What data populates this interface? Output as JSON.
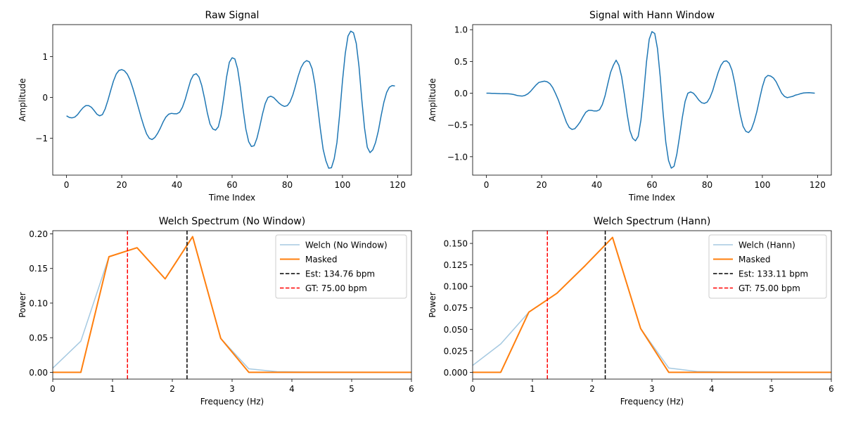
{
  "chart_data": [
    {
      "type": "line",
      "title": "Raw Signal",
      "xlabel": "Time Index",
      "ylabel": "Amplitude",
      "xlim": [
        -5,
        125
      ],
      "ylim": [
        -1.9,
        1.78
      ],
      "xticks": [
        0,
        20,
        40,
        60,
        80,
        100,
        120
      ],
      "xtick_labels": [
        "0",
        "20",
        "40",
        "60",
        "80",
        "100",
        "120"
      ],
      "yticks": [
        -1,
        0,
        1
      ],
      "ytick_labels": [
        "−1",
        "0",
        "1"
      ],
      "legend": null,
      "series": [
        {
          "color": "#1f77b4",
          "x": [
            0,
            1,
            2,
            3,
            4,
            5,
            6,
            7,
            8,
            9,
            10,
            11,
            12,
            13,
            14,
            15,
            16,
            17,
            18,
            19,
            20,
            21,
            22,
            23,
            24,
            25,
            26,
            27,
            28,
            29,
            30,
            31,
            32,
            33,
            34,
            35,
            36,
            37,
            38,
            39,
            40,
            41,
            42,
            43,
            44,
            45,
            46,
            47,
            48,
            49,
            50,
            51,
            52,
            53,
            54,
            55,
            56,
            57,
            58,
            59,
            60,
            61,
            62,
            63,
            64,
            65,
            66,
            67,
            68,
            69,
            70,
            71,
            72,
            73,
            74,
            75,
            76,
            77,
            78,
            79,
            80,
            81,
            82,
            83,
            84,
            85,
            86,
            87,
            88,
            89,
            90,
            91,
            92,
            93,
            94,
            95,
            96,
            97,
            98,
            99,
            100,
            101,
            102,
            103,
            104,
            105,
            106,
            107,
            108,
            109,
            110,
            111,
            112,
            113,
            114,
            115,
            116,
            117,
            118,
            119
          ],
          "values": [
            -0.45,
            -0.49,
            -0.5,
            -0.48,
            -0.42,
            -0.33,
            -0.25,
            -0.2,
            -0.2,
            -0.24,
            -0.32,
            -0.41,
            -0.45,
            -0.42,
            -0.28,
            -0.07,
            0.17,
            0.4,
            0.57,
            0.66,
            0.68,
            0.65,
            0.57,
            0.43,
            0.23,
            0.0,
            -0.24,
            -0.48,
            -0.7,
            -0.89,
            -1.0,
            -1.03,
            -0.98,
            -0.88,
            -0.75,
            -0.6,
            -0.48,
            -0.41,
            -0.39,
            -0.4,
            -0.4,
            -0.36,
            -0.24,
            -0.05,
            0.19,
            0.42,
            0.55,
            0.58,
            0.5,
            0.29,
            -0.02,
            -0.37,
            -0.65,
            -0.77,
            -0.8,
            -0.72,
            -0.44,
            0.0,
            0.5,
            0.86,
            0.97,
            0.94,
            0.7,
            0.25,
            -0.3,
            -0.78,
            -1.08,
            -1.2,
            -1.18,
            -1.0,
            -0.72,
            -0.41,
            -0.15,
            0.0,
            0.03,
            0.0,
            -0.07,
            -0.14,
            -0.19,
            -0.22,
            -0.2,
            -0.11,
            0.06,
            0.29,
            0.53,
            0.73,
            0.85,
            0.9,
            0.87,
            0.7,
            0.33,
            -0.22,
            -0.78,
            -1.27,
            -1.55,
            -1.73,
            -1.72,
            -1.5,
            -1.1,
            -0.4,
            0.4,
            1.07,
            1.5,
            1.62,
            1.58,
            1.32,
            0.75,
            -0.05,
            -0.75,
            -1.22,
            -1.35,
            -1.28,
            -1.1,
            -0.82,
            -0.45,
            -0.12,
            0.12,
            0.25,
            0.29,
            0.28
          ]
        }
      ]
    },
    {
      "type": "line",
      "title": "Signal with Hann Window",
      "xlabel": "Time Index",
      "ylabel": "Amplitude",
      "xlim": [
        -5,
        125
      ],
      "ylim": [
        -1.29,
        1.08
      ],
      "xticks": [
        0,
        20,
        40,
        60,
        80,
        100,
        120
      ],
      "xtick_labels": [
        "0",
        "20",
        "40",
        "60",
        "80",
        "100",
        "120"
      ],
      "yticks": [
        -1.0,
        -0.5,
        0.0,
        0.5,
        1.0
      ],
      "ytick_labels": [
        "−1.0",
        "−0.5",
        "0.0",
        "0.5",
        "1.0"
      ],
      "legend": null,
      "series": [
        {
          "color": "#1f77b4",
          "x": [
            0,
            1,
            2,
            3,
            4,
            5,
            6,
            7,
            8,
            9,
            10,
            11,
            12,
            13,
            14,
            15,
            16,
            17,
            18,
            19,
            20,
            21,
            22,
            23,
            24,
            25,
            26,
            27,
            28,
            29,
            30,
            31,
            32,
            33,
            34,
            35,
            36,
            37,
            38,
            39,
            40,
            41,
            42,
            43,
            44,
            45,
            46,
            47,
            48,
            49,
            50,
            51,
            52,
            53,
            54,
            55,
            56,
            57,
            58,
            59,
            60,
            61,
            62,
            63,
            64,
            65,
            66,
            67,
            68,
            69,
            70,
            71,
            72,
            73,
            74,
            75,
            76,
            77,
            78,
            79,
            80,
            81,
            82,
            83,
            84,
            85,
            86,
            87,
            88,
            89,
            90,
            91,
            92,
            93,
            94,
            95,
            96,
            97,
            98,
            99,
            100,
            101,
            102,
            103,
            104,
            105,
            106,
            107,
            108,
            109,
            110,
            111,
            112,
            113,
            114,
            115,
            116,
            117,
            118,
            119
          ],
          "values": [
            0.0,
            0.0,
            -0.002,
            -0.003,
            -0.005,
            -0.007,
            -0.008,
            -0.008,
            -0.01,
            -0.014,
            -0.022,
            -0.034,
            -0.042,
            -0.045,
            -0.034,
            -0.01,
            0.03,
            0.08,
            0.13,
            0.17,
            0.18,
            0.19,
            0.18,
            0.15,
            0.09,
            0.0,
            -0.1,
            -0.22,
            -0.34,
            -0.46,
            -0.54,
            -0.57,
            -0.56,
            -0.51,
            -0.45,
            -0.37,
            -0.3,
            -0.27,
            -0.27,
            -0.28,
            -0.28,
            -0.26,
            -0.18,
            -0.04,
            0.15,
            0.33,
            0.44,
            0.52,
            0.44,
            0.26,
            -0.02,
            -0.33,
            -0.59,
            -0.71,
            -0.75,
            -0.68,
            -0.42,
            0.0,
            0.49,
            0.85,
            0.97,
            0.94,
            0.7,
            0.25,
            -0.3,
            -0.77,
            -1.06,
            -1.18,
            -1.15,
            -0.96,
            -0.68,
            -0.38,
            -0.13,
            0.0,
            0.02,
            0.0,
            -0.05,
            -0.11,
            -0.15,
            -0.16,
            -0.14,
            -0.07,
            0.04,
            0.19,
            0.33,
            0.44,
            0.5,
            0.51,
            0.47,
            0.36,
            0.16,
            -0.1,
            -0.34,
            -0.52,
            -0.6,
            -0.62,
            -0.57,
            -0.45,
            -0.29,
            -0.09,
            0.1,
            0.24,
            0.28,
            0.27,
            0.24,
            0.18,
            0.09,
            0.0,
            -0.05,
            -0.07,
            -0.06,
            -0.05,
            -0.03,
            -0.02,
            -0.005,
            0.004,
            0.007,
            0.008,
            0.005,
            0.0
          ]
        }
      ]
    },
    {
      "type": "line",
      "title": "Welch Spectrum (No Window)",
      "xlabel": "Frequency (Hz)",
      "ylabel": "Power",
      "xlim": [
        0,
        6
      ],
      "ylim": [
        -0.0098,
        0.2046
      ],
      "xticks": [
        0,
        1,
        2,
        3,
        4,
        5,
        6
      ],
      "xtick_labels": [
        "0",
        "1",
        "2",
        "3",
        "4",
        "5",
        "6"
      ],
      "yticks": [
        0.0,
        0.05,
        0.1,
        0.15,
        0.2
      ],
      "ytick_labels": [
        "0.00",
        "0.05",
        "0.10",
        "0.15",
        "0.20"
      ],
      "legend": "top-right",
      "series": [
        {
          "name": "Welch (No Window)",
          "color": "#1f77b4",
          "opacity": 0.4,
          "width": 1.5,
          "x": [
            0,
            0.47,
            0.94,
            1.41,
            1.88,
            2.34,
            2.81,
            3.28,
            3.75,
            4.22,
            4.69,
            5.16,
            5.63,
            6.1
          ],
          "values": [
            0.006,
            0.045,
            0.167,
            0.18,
            0.135,
            0.196,
            0.049,
            0.005,
            0.001,
            0.0005,
            0.0003,
            0.0002,
            0.0001,
            0.0001
          ]
        },
        {
          "name": "Masked",
          "color": "#ff7f0e",
          "width": 2,
          "x": [
            0,
            0.47,
            0.94,
            1.41,
            1.88,
            2.34,
            2.81,
            3.28,
            3.75,
            4.22,
            4.69,
            5.16,
            5.63,
            6.1
          ],
          "values": [
            0,
            0,
            0.167,
            0.18,
            0.135,
            0.196,
            0.049,
            0,
            0,
            0,
            0,
            0,
            0,
            0
          ]
        }
      ],
      "vlines": [
        {
          "name": "Est: 134.76 bpm",
          "x": 2.246,
          "color": "#000000"
        },
        {
          "name": "GT: 75.00 bpm",
          "x": 1.25,
          "color": "#ff0000"
        }
      ]
    },
    {
      "type": "line",
      "title": "Welch Spectrum (Hann)",
      "xlabel": "Frequency (Hz)",
      "ylabel": "Power",
      "xlim": [
        0,
        6
      ],
      "ylim": [
        -0.0079,
        0.1648
      ],
      "xticks": [
        0,
        1,
        2,
        3,
        4,
        5,
        6
      ],
      "xtick_labels": [
        "0",
        "1",
        "2",
        "3",
        "4",
        "5",
        "6"
      ],
      "yticks": [
        0.0,
        0.025,
        0.05,
        0.075,
        0.1,
        0.125,
        0.15
      ],
      "ytick_labels": [
        "0.000",
        "0.025",
        "0.050",
        "0.075",
        "0.100",
        "0.125",
        "0.150"
      ],
      "legend": "top-right",
      "series": [
        {
          "name": "Welch (Hann)",
          "color": "#1f77b4",
          "opacity": 0.4,
          "width": 1.5,
          "x": [
            0,
            0.47,
            0.94,
            1.41,
            1.88,
            2.34,
            2.81,
            3.28,
            3.75,
            4.22,
            4.69,
            5.16,
            5.63,
            6.1
          ],
          "values": [
            0.008,
            0.033,
            0.07,
            0.092,
            0.124,
            0.157,
            0.051,
            0.005,
            0.001,
            0.0005,
            0.0003,
            0.0002,
            0.0001,
            0.0001
          ]
        },
        {
          "name": "Masked",
          "color": "#ff7f0e",
          "width": 2,
          "x": [
            0,
            0.47,
            0.94,
            1.41,
            1.88,
            2.34,
            2.81,
            3.28,
            3.75,
            4.22,
            4.69,
            5.16,
            5.63,
            6.1
          ],
          "values": [
            0,
            0,
            0.07,
            0.092,
            0.124,
            0.157,
            0.051,
            0,
            0,
            0,
            0,
            0,
            0,
            0
          ]
        }
      ],
      "vlines": [
        {
          "name": "Est: 133.11 bpm",
          "x": 2.218,
          "color": "#000000"
        },
        {
          "name": "GT: 75.00 bpm",
          "x": 1.25,
          "color": "#ff0000"
        }
      ]
    }
  ]
}
